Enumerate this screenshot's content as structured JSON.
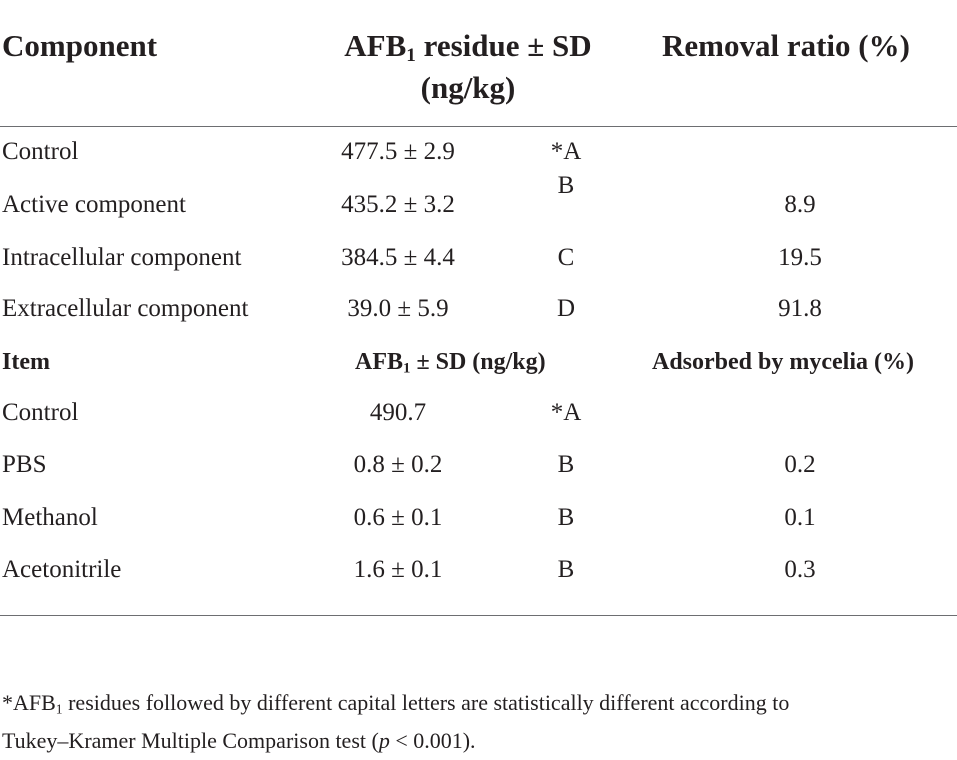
{
  "header": {
    "col_component": "Component",
    "col_residue_line1_pre": "AFB",
    "col_residue_line1_sub": "1",
    "col_residue_line1_post": " residue ± SD",
    "col_residue_line2": "(ng/kg)",
    "col_removal": "Removal ratio (%)"
  },
  "section1": {
    "rows": [
      {
        "name": "Control",
        "residue": "477.5 ± 2.9",
        "letter": "*A",
        "ratio": ""
      },
      {
        "name": "Active component",
        "residue": "435.2 ± 3.2",
        "letter": "B",
        "ratio": "8.9"
      },
      {
        "name": "Intracellular component",
        "residue": "384.5 ± 4.4",
        "letter": "C",
        "ratio": "19.5"
      },
      {
        "name": "Extracellular component",
        "residue": "39.0 ± 5.9",
        "letter": "D",
        "ratio": "91.8"
      }
    ]
  },
  "subheader": {
    "col_item": "Item",
    "col_afb_pre": "AFB",
    "col_afb_sub": "1",
    "col_afb_post": " ± SD (ng/kg)",
    "col_adsorbed": "Adsorbed by mycelia (%)"
  },
  "section2": {
    "rows": [
      {
        "name": "Control",
        "residue": "490.7",
        "letter": "*A",
        "ratio": ""
      },
      {
        "name": "PBS",
        "residue": "0.8 ± 0.2",
        "letter": "B",
        "ratio": "0.2"
      },
      {
        "name": "Methanol",
        "residue": "0.6 ± 0.1",
        "letter": "B",
        "ratio": "0.1"
      },
      {
        "name": "Acetonitrile",
        "residue": "1.6 ± 0.1",
        "letter": "B",
        "ratio": "0.3"
      }
    ]
  },
  "footnote": {
    "line1_pre": "*AFB",
    "line1_sub": "1",
    "line1_post": " residues followed by different capital letters are statistically different according to",
    "line2_pre": "Tukey–Kramer Multiple Comparison test (",
    "line2_italic": "p",
    "line2_post": " < 0.001)."
  }
}
